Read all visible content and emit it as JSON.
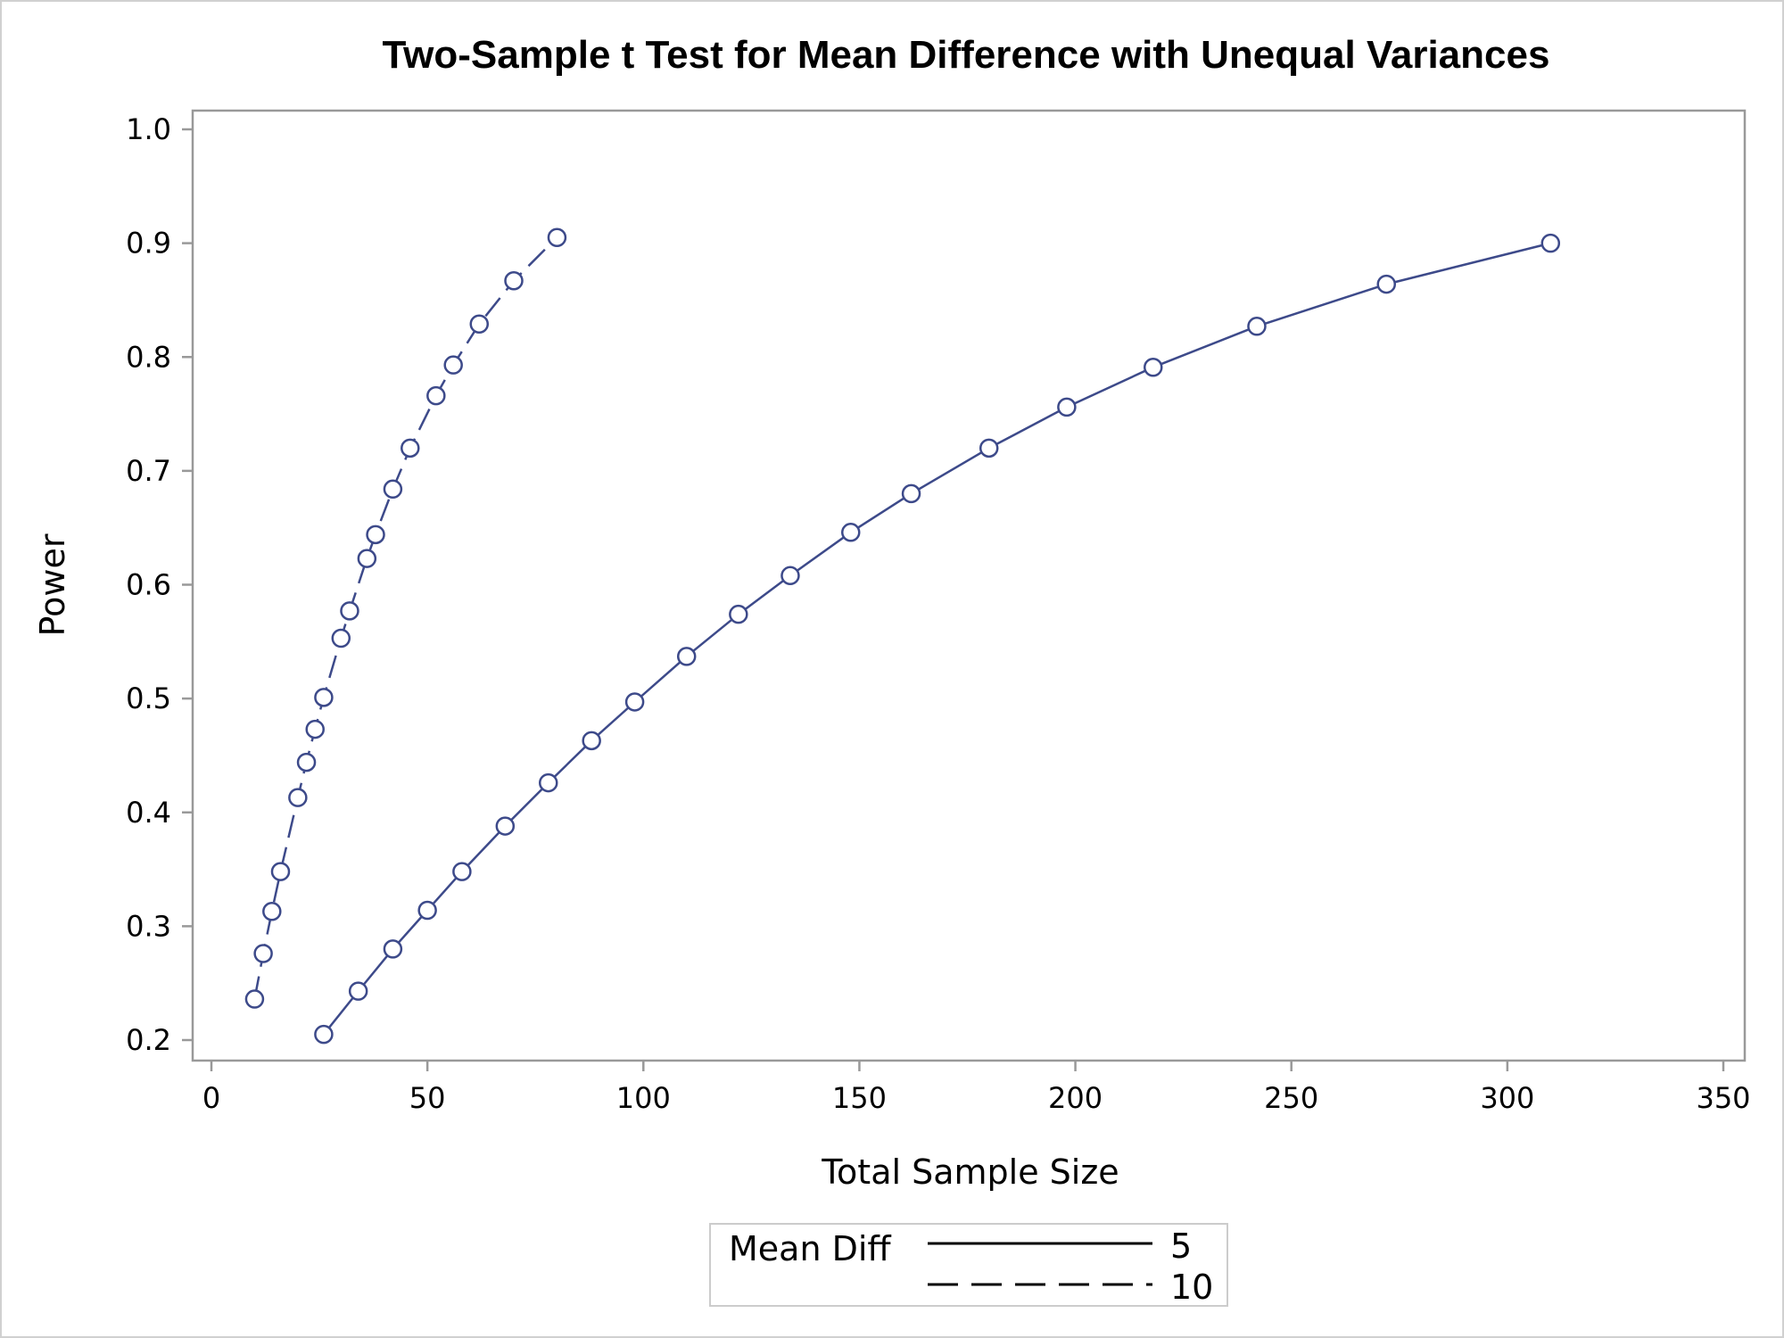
{
  "chart_data": {
    "type": "line",
    "title": "Two-Sample t Test for Mean Difference with Unequal Variances",
    "xlabel": "Total Sample Size",
    "ylabel": "Power",
    "xlim": [
      0,
      350
    ],
    "ylim": [
      0.2,
      1.0
    ],
    "xticks": [
      0,
      50,
      100,
      150,
      200,
      250,
      300,
      350
    ],
    "yticks": [
      "0.2",
      "0.3",
      "0.4",
      "0.5",
      "0.6",
      "0.7",
      "0.8",
      "0.9",
      "1.0"
    ],
    "grid": false,
    "legend": {
      "placement": "bottom-center",
      "title": "Mean Diff",
      "entries": [
        "5",
        "10"
      ]
    },
    "colors": {
      "series": "#3d4a8a",
      "axis": "#999999"
    },
    "series": [
      {
        "name": "5",
        "line_style": "solid",
        "x": [
          26,
          34,
          42,
          50,
          58,
          68,
          78,
          88,
          98,
          110,
          122,
          134,
          148,
          162,
          180,
          198,
          218,
          242,
          272,
          310
        ],
        "y": [
          0.205,
          0.243,
          0.28,
          0.314,
          0.348,
          0.388,
          0.426,
          0.463,
          0.497,
          0.537,
          0.574,
          0.608,
          0.646,
          0.68,
          0.72,
          0.756,
          0.791,
          0.827,
          0.864,
          0.9
        ]
      },
      {
        "name": "10",
        "line_style": "dashed",
        "x": [
          10,
          12,
          14,
          16,
          20,
          22,
          24,
          26,
          30,
          32,
          36,
          38,
          42,
          46,
          52,
          56,
          62,
          70,
          80
        ],
        "y": [
          0.236,
          0.276,
          0.313,
          0.348,
          0.413,
          0.444,
          0.473,
          0.501,
          0.553,
          0.577,
          0.623,
          0.644,
          0.684,
          0.72,
          0.766,
          0.793,
          0.829,
          0.867,
          0.905
        ]
      }
    ]
  }
}
